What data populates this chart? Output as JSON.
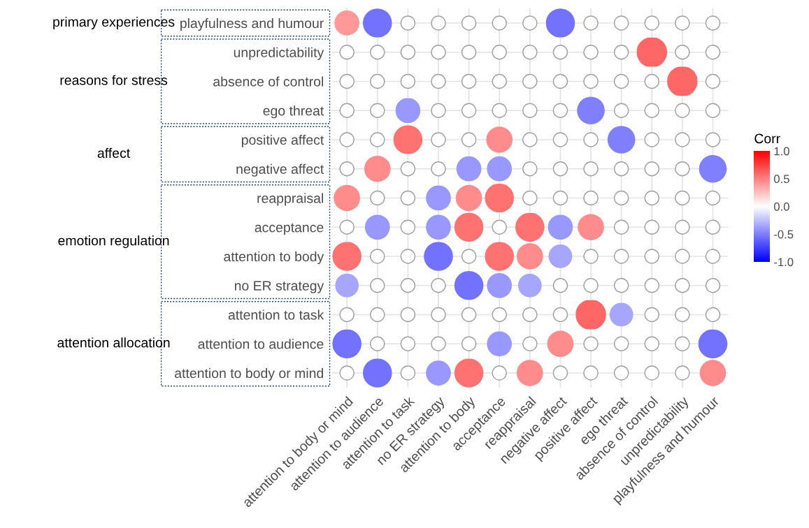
{
  "chart_data": {
    "type": "heatmap",
    "clabel": "Corr",
    "categories": [
      "attention to body or mind",
      "attention to audience",
      "attention to task",
      "no ER strategy",
      "attention to body",
      "acceptance",
      "reappraisal",
      "negative affect",
      "positive affect",
      "ego threat",
      "absence of control",
      "unpredictability",
      "playfulness and humour"
    ],
    "y_categories": [
      "playfulness and humour",
      "unpredictability",
      "absence of control",
      "ego threat",
      "positive affect",
      "negative affect",
      "reappraisal",
      "acceptance",
      "attention to body",
      "no ER strategy",
      "attention to task",
      "attention to audience",
      "attention to body or mind"
    ],
    "cells": [
      [
        0.4,
        -0.55,
        null,
        null,
        null,
        null,
        null,
        -0.55,
        null,
        null,
        null,
        null,
        null
      ],
      [
        null,
        null,
        null,
        null,
        null,
        null,
        null,
        null,
        null,
        null,
        0.6,
        null,
        null
      ],
      [
        null,
        null,
        null,
        null,
        null,
        null,
        null,
        null,
        null,
        null,
        null,
        0.6,
        null
      ],
      [
        null,
        null,
        -0.4,
        null,
        null,
        null,
        null,
        null,
        -0.5,
        null,
        null,
        null,
        null
      ],
      [
        null,
        null,
        0.55,
        null,
        null,
        0.45,
        null,
        null,
        null,
        -0.5,
        null,
        null,
        null
      ],
      [
        null,
        0.45,
        null,
        null,
        -0.4,
        -0.4,
        null,
        null,
        null,
        null,
        null,
        null,
        -0.5
      ],
      [
        0.45,
        null,
        null,
        -0.4,
        0.45,
        0.55,
        null,
        null,
        null,
        null,
        null,
        null,
        null
      ],
      [
        null,
        -0.4,
        null,
        -0.4,
        0.55,
        null,
        0.55,
        -0.4,
        0.45,
        null,
        null,
        null,
        null
      ],
      [
        0.55,
        null,
        null,
        -0.55,
        null,
        0.55,
        0.45,
        -0.35,
        null,
        null,
        null,
        null,
        null
      ],
      [
        -0.35,
        null,
        null,
        null,
        -0.55,
        -0.4,
        -0.35,
        null,
        null,
        null,
        null,
        null,
        null
      ],
      [
        null,
        null,
        null,
        null,
        null,
        null,
        null,
        null,
        0.6,
        -0.35,
        null,
        null,
        null
      ],
      [
        -0.55,
        null,
        null,
        null,
        null,
        -0.4,
        null,
        0.45,
        null,
        null,
        null,
        null,
        -0.55
      ],
      [
        null,
        -0.55,
        null,
        -0.4,
        0.55,
        null,
        0.45,
        null,
        null,
        null,
        null,
        null,
        0.45
      ]
    ],
    "clim": [
      -1.0,
      1.0
    ],
    "cticks": [
      {
        "value": 1.0,
        "label": "1.0"
      },
      {
        "value": 0.5,
        "label": "0.5"
      },
      {
        "value": 0.0,
        "label": "0.0"
      },
      {
        "value": -0.5,
        "label": "-0.5"
      },
      {
        "value": -1.0,
        "label": "-1.0"
      }
    ],
    "grid": true,
    "annotations": [
      "primary experiences",
      "reasons for stress",
      "affect",
      "emotion regulation",
      "attention allocation"
    ]
  }
}
